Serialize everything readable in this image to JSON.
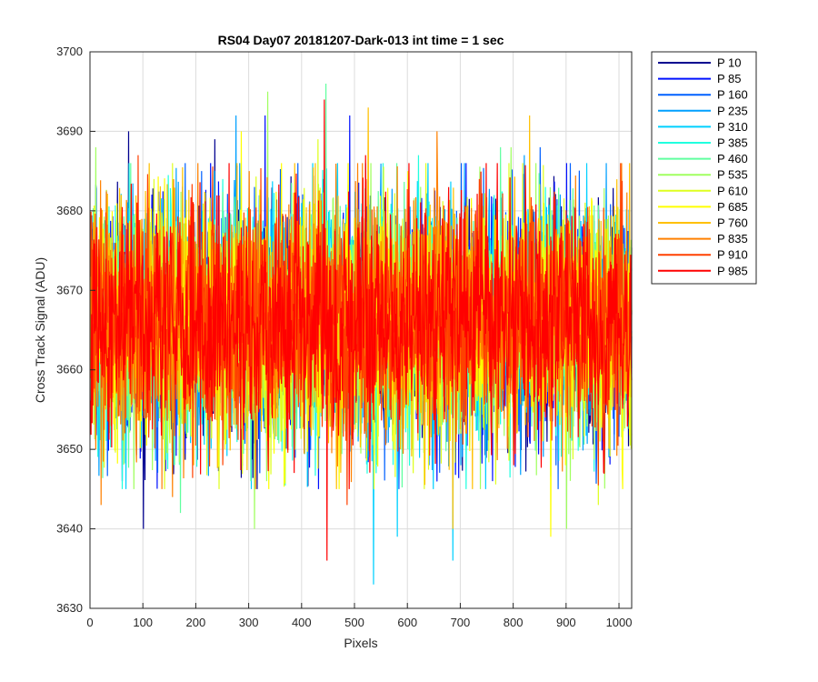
{
  "chart_data": {
    "type": "line",
    "title": "RS04 Day07 20181207-Dark-013 int time = 1 sec",
    "xlabel": "Pixels",
    "ylabel": "Cross Track Signal (ADU)",
    "xlim": [
      0,
      1024
    ],
    "ylim": [
      3630,
      3700
    ],
    "xticks": [
      0,
      100,
      200,
      300,
      400,
      500,
      600,
      700,
      800,
      900,
      1000
    ],
    "yticks": [
      3630,
      3640,
      3650,
      3660,
      3670,
      3680,
      3690,
      3700
    ],
    "grid": true,
    "legend_position": "outside-top-right",
    "noise_center": 3666,
    "series": [
      {
        "name": "P 10",
        "color": "#00008F",
        "extremes": [
          [
            72,
            3690
          ],
          [
            100,
            3640
          ],
          [
            235,
            3689
          ],
          [
            440,
            3684
          ],
          [
            580,
            3651
          ]
        ]
      },
      {
        "name": "P 85",
        "color": "#0010FF",
        "extremes": [
          [
            330,
            3692
          ],
          [
            490,
            3692
          ],
          [
            60,
            3646
          ],
          [
            760,
            3646
          ],
          [
            900,
            3686
          ]
        ]
      },
      {
        "name": "P 160",
        "color": "#0060FF",
        "extremes": [
          [
            210,
            3685
          ],
          [
            850,
            3688
          ],
          [
            640,
            3648
          ],
          [
            320,
            3647
          ]
        ]
      },
      {
        "name": "P 235",
        "color": "#00A0FF",
        "extremes": [
          [
            275,
            3692
          ],
          [
            820,
            3687
          ],
          [
            700,
            3648
          ],
          [
            980,
            3649
          ]
        ]
      },
      {
        "name": "P 310",
        "color": "#00D0FF",
        "extremes": [
          [
            535,
            3633
          ],
          [
            685,
            3636
          ],
          [
            580,
            3639
          ],
          [
            420,
            3686
          ]
        ]
      },
      {
        "name": "P 385",
        "color": "#20FFDF",
        "extremes": [
          [
            620,
            3687
          ],
          [
            250,
            3684
          ],
          [
            540,
            3647
          ],
          [
            860,
            3683
          ]
        ]
      },
      {
        "name": "P 460",
        "color": "#60FF9F",
        "extremes": [
          [
            445,
            3696
          ],
          [
            775,
            3688
          ],
          [
            170,
            3642
          ],
          [
            600,
            3650
          ]
        ]
      },
      {
        "name": "P 535",
        "color": "#A0FF60",
        "extremes": [
          [
            335,
            3695
          ],
          [
            795,
            3688
          ],
          [
            310,
            3640
          ],
          [
            900,
            3640
          ],
          [
            10,
            3688
          ]
        ]
      },
      {
        "name": "P 610",
        "color": "#DFFF20",
        "extremes": [
          [
            120,
            3684
          ],
          [
            430,
            3689
          ],
          [
            610,
            3647
          ],
          [
            960,
            3643
          ]
        ]
      },
      {
        "name": "P 685",
        "color": "#FFFF00",
        "extremes": [
          [
            285,
            3690
          ],
          [
            870,
            3639
          ],
          [
            470,
            3645
          ],
          [
            600,
            3685
          ]
        ]
      },
      {
        "name": "P 760",
        "color": "#FFC000",
        "extremes": [
          [
            525,
            3693
          ],
          [
            830,
            3692
          ],
          [
            685,
            3640
          ],
          [
            195,
            3648
          ]
        ]
      },
      {
        "name": "P 835",
        "color": "#FF8000",
        "extremes": [
          [
            655,
            3690
          ],
          [
            20,
            3643
          ],
          [
            155,
            3644
          ],
          [
            300,
            3685
          ]
        ]
      },
      {
        "name": "P 910",
        "color": "#FF4000",
        "extremes": [
          [
            90,
            3687
          ],
          [
            485,
            3643
          ],
          [
            250,
            3648
          ],
          [
            735,
            3684
          ]
        ]
      },
      {
        "name": "P 985",
        "color": "#FF0000",
        "extremes": [
          [
            442,
            3694
          ],
          [
            447,
            3636
          ],
          [
            520,
            3687
          ],
          [
            800,
            3648
          ]
        ]
      }
    ]
  }
}
